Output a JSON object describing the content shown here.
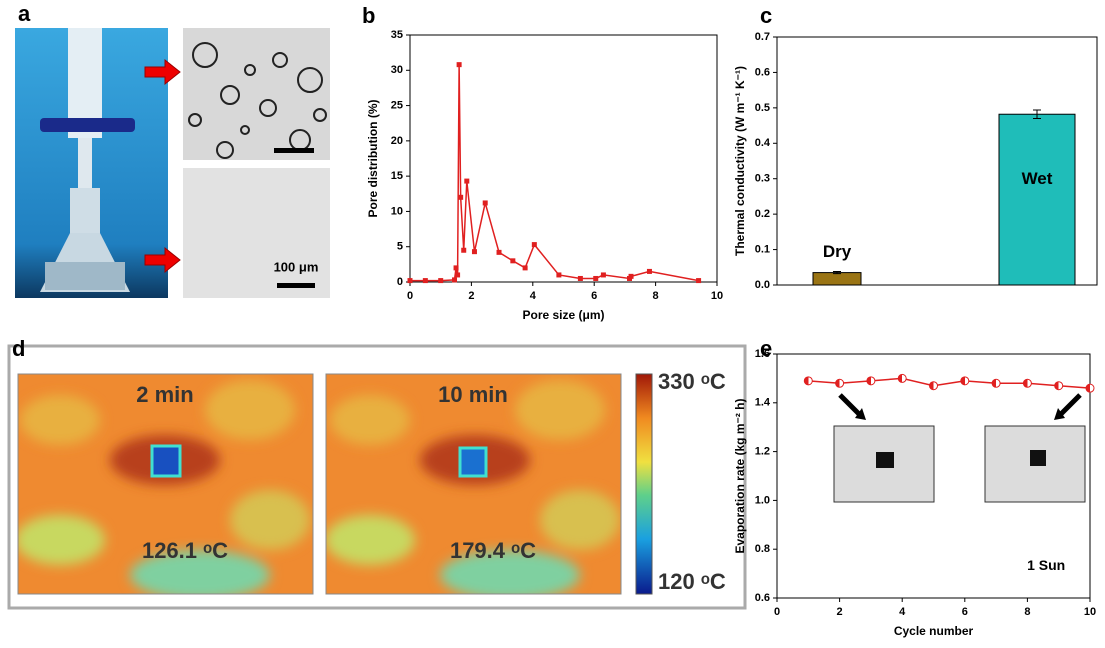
{
  "panel_labels": [
    "a",
    "b",
    "c",
    "d",
    "e"
  ],
  "micrograph_scale": "100 μm",
  "thermal": {
    "times": [
      "2 min",
      "10 min"
    ],
    "temperatures": [
      "126.1 ᵒC",
      "179.4 ᵒC"
    ],
    "colorbar_max": "330 ᵒC",
    "colorbar_min": "120 ᵒC"
  },
  "chart_data": [
    {
      "type": "line",
      "x_label": "Pore size (μm)",
      "y_label": "Pore distribution (%)",
      "xlim": [
        0,
        10
      ],
      "ylim": [
        0,
        35
      ],
      "xticks": [
        0,
        2,
        4,
        6,
        8,
        10
      ],
      "yticks": [
        0,
        5,
        10,
        15,
        20,
        25,
        30,
        35
      ],
      "marker": "square",
      "series": [
        {
          "color": "#e02020",
          "x": [
            0,
            0.5,
            1,
            1.45,
            1.5,
            1.55,
            1.6,
            1.65,
            1.75,
            1.85,
            2.1,
            2.45,
            2.9,
            3.35,
            3.75,
            4.05,
            4.85,
            5.55,
            6.05,
            6.3,
            7.15,
            7.2,
            7.8,
            9.4
          ],
          "values": [
            0.2,
            0.2,
            0.2,
            0.3,
            2,
            1,
            30.8,
            12,
            4.5,
            14.3,
            4.3,
            11.2,
            4.2,
            3,
            2,
            5.3,
            1,
            0.5,
            0.5,
            1,
            0.5,
            0.8,
            1.5,
            0.2
          ]
        }
      ]
    },
    {
      "type": "bar",
      "y_label": "Thermal conductivity (W m⁻¹ K⁻¹)",
      "ylim": [
        0,
        0.7
      ],
      "yticks": [
        {
          "value": 0,
          "label": "0.0"
        },
        0.1,
        0.2,
        0.3,
        0.4,
        0.5,
        0.6,
        0.7
      ],
      "categories": [
        "Dry",
        "Wet"
      ],
      "values": [
        0.035,
        0.482
      ],
      "errors": [
        0.003,
        0.012
      ],
      "colors": [
        "#9a7414",
        "#1fbdb9"
      ]
    },
    {
      "type": "line",
      "x_label": "Cycle number",
      "y_label": "Evaporation rate (kg m⁻² h)",
      "annotation": "1 Sun",
      "xlim": [
        0,
        10
      ],
      "ylim": [
        0.6,
        1.6
      ],
      "xticks": [
        0,
        2,
        4,
        6,
        8,
        10
      ],
      "yticks": [
        0.6,
        0.8,
        {
          "value": 1,
          "label": "1.0"
        },
        1.2,
        1.4,
        1.6
      ],
      "marker": "half-circle",
      "series": [
        {
          "color": "#e02020",
          "x": [
            1,
            2,
            3,
            4,
            5,
            6,
            7,
            8,
            9,
            10
          ],
          "values": [
            1.49,
            1.48,
            1.49,
            1.5,
            1.47,
            1.49,
            1.48,
            1.48,
            1.47,
            1.46
          ]
        }
      ]
    }
  ]
}
